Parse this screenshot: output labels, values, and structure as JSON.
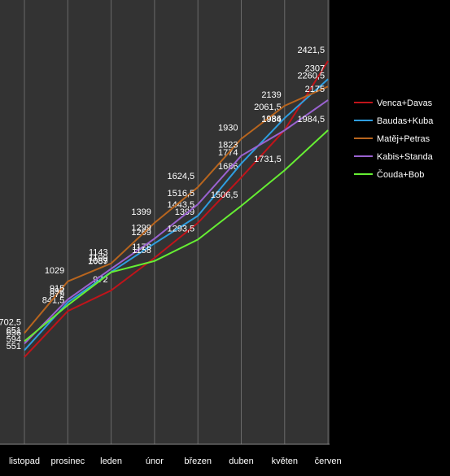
{
  "chart_data": {
    "type": "line",
    "categories": [
      "listopad",
      "prosinec",
      "leden",
      "únor",
      "březen",
      "duben",
      "květen",
      "červen"
    ],
    "series": [
      {
        "name": "Venca+Davas",
        "color": "#c0141a",
        "values": [
          551,
          841.5,
          972,
          1178,
          1399,
          1686,
          1986,
          2421.5
        ],
        "value_labels": [
          "551",
          "841,5",
          "972",
          "1178",
          "1399",
          "1686",
          "1986",
          "2421,5"
        ]
      },
      {
        "name": "Baudas+Kuba",
        "color": "#2e9ee0",
        "values": [
          594,
          897,
          1089,
          1269,
          1443.5,
          1774,
          2061.5,
          2307
        ],
        "value_labels": [
          "594",
          "897",
          "1089",
          "1269",
          "1443,5",
          "1774",
          "2061,5",
          "2307"
        ]
      },
      {
        "name": "Matěj+Petras",
        "color": "#b8651e",
        "values": [
          702.5,
          1029,
          1143,
          1399,
          1624.5,
          1930,
          2139,
          2260.5
        ],
        "value_labels": [
          "702,5",
          "1029",
          "1143",
          "1399",
          "1624,5",
          "1930",
          "2139",
          "2260,5"
        ]
      },
      {
        "name": "Kabis+Standa",
        "color": "#9a62d0",
        "values": [
          636,
          915,
          1109,
          1299,
          1516.5,
          1823,
          1984,
          2175
        ],
        "value_labels": [
          "636",
          "915",
          "1109",
          "1299",
          "1516,5",
          "1823",
          "1984",
          "2175"
        ]
      },
      {
        "name": "Čouda+Bob",
        "color": "#66ee33",
        "values": [
          651,
          879,
          1087,
          1158,
          1293.5,
          1506.5,
          1731.5,
          1984.5
        ],
        "value_labels": [
          "651",
          "879",
          "1087",
          "1158",
          "1293,5",
          "1506,5",
          "1731,5",
          "1984,5"
        ]
      }
    ],
    "ylim": [
      0,
      2800
    ],
    "legend": "right"
  }
}
